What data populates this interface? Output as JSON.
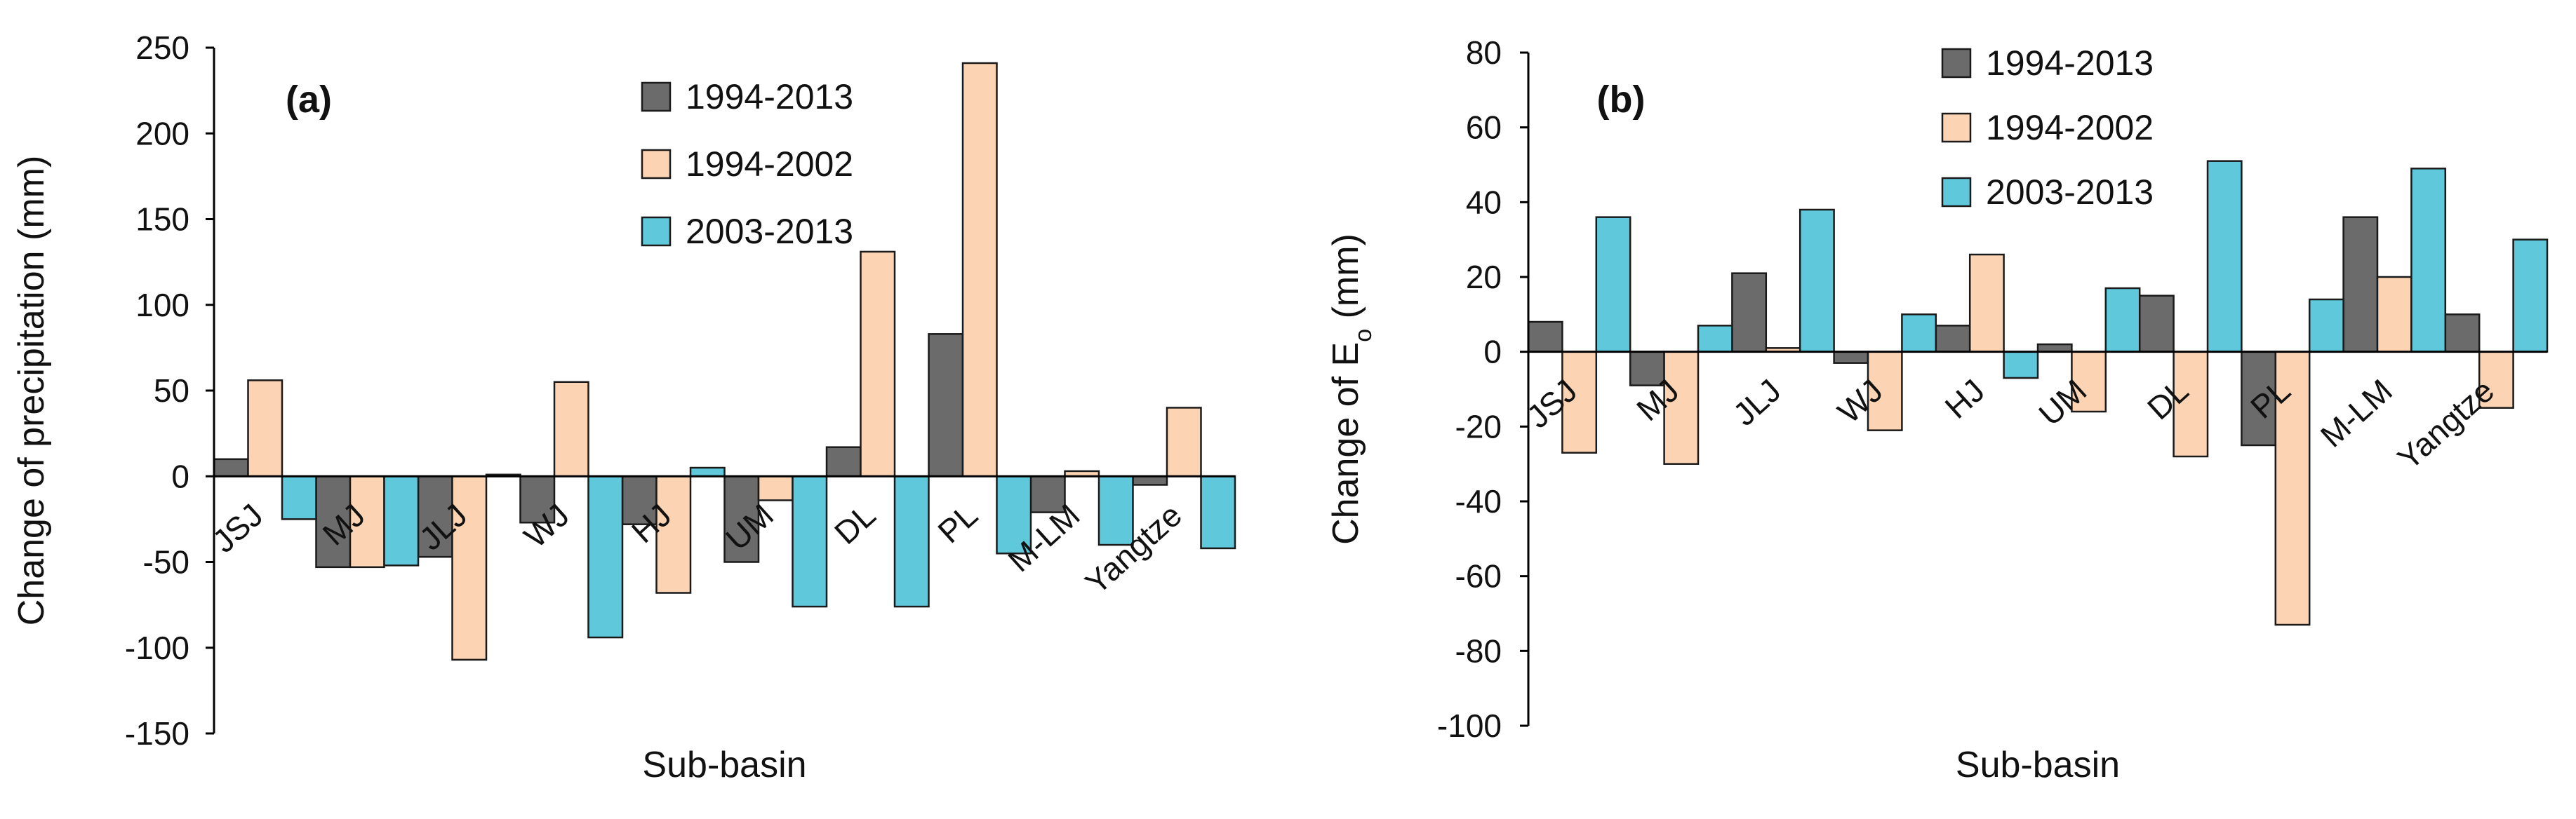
{
  "chart_data": [
    {
      "type": "bar",
      "panel_label": "(a)",
      "title": "",
      "xlabel": "Sub-basin",
      "ylabel": "Change of precipitation (mm)",
      "ylim": [
        -150,
        250
      ],
      "yticks": [
        250,
        200,
        150,
        100,
        50,
        0,
        -50,
        -100,
        -150
      ],
      "grid": false,
      "legend_position": "top-center",
      "categories": [
        "JSJ",
        "MJ",
        "JLJ",
        "WJ",
        "HJ",
        "UM",
        "DL",
        "PL",
        "M-LM",
        "Yangtze"
      ],
      "series": [
        {
          "name": "1994-2013",
          "color": "#6b6b6b",
          "values": [
            10,
            -53,
            -47,
            -27,
            -28,
            -50,
            17,
            83,
            -21,
            -5
          ]
        },
        {
          "name": "1994-2002",
          "color": "#fcd4b4",
          "values": [
            56,
            -53,
            -107,
            55,
            -68,
            -14,
            131,
            241,
            3,
            40
          ]
        },
        {
          "name": "2003-2013",
          "color": "#5fc8da",
          "values": [
            -25,
            -52,
            1,
            -94,
            5,
            -76,
            -76,
            -45,
            -40,
            -42
          ]
        }
      ]
    },
    {
      "type": "bar",
      "panel_label": "(b)",
      "title": "",
      "xlabel": "Sub-basin",
      "ylabel": "Change of E",
      "ylabel_subscript": "o",
      "ylabel_unit": " (mm)",
      "ylim": [
        -100,
        80
      ],
      "yticks": [
        80,
        60,
        40,
        20,
        0,
        -20,
        -40,
        -60,
        -80,
        -100
      ],
      "grid": false,
      "legend_position": "top-left",
      "categories": [
        "JSJ",
        "MJ",
        "JLJ",
        "WJ",
        "HJ",
        "UM",
        "DL",
        "PL",
        "M-LM",
        "Yangtze"
      ],
      "series": [
        {
          "name": "1994-2013",
          "color": "#6b6b6b",
          "values": [
            8,
            -9,
            21,
            -3,
            7,
            2,
            15,
            -25,
            36,
            10
          ]
        },
        {
          "name": "1994-2002",
          "color": "#fcd4b4",
          "values": [
            -27,
            -30,
            1,
            -21,
            26,
            -16,
            -28,
            -73,
            20,
            -15
          ]
        },
        {
          "name": "2003-2013",
          "color": "#5fc8da",
          "values": [
            36,
            7,
            38,
            10,
            -7,
            17,
            51,
            14,
            49,
            30
          ]
        }
      ]
    }
  ]
}
